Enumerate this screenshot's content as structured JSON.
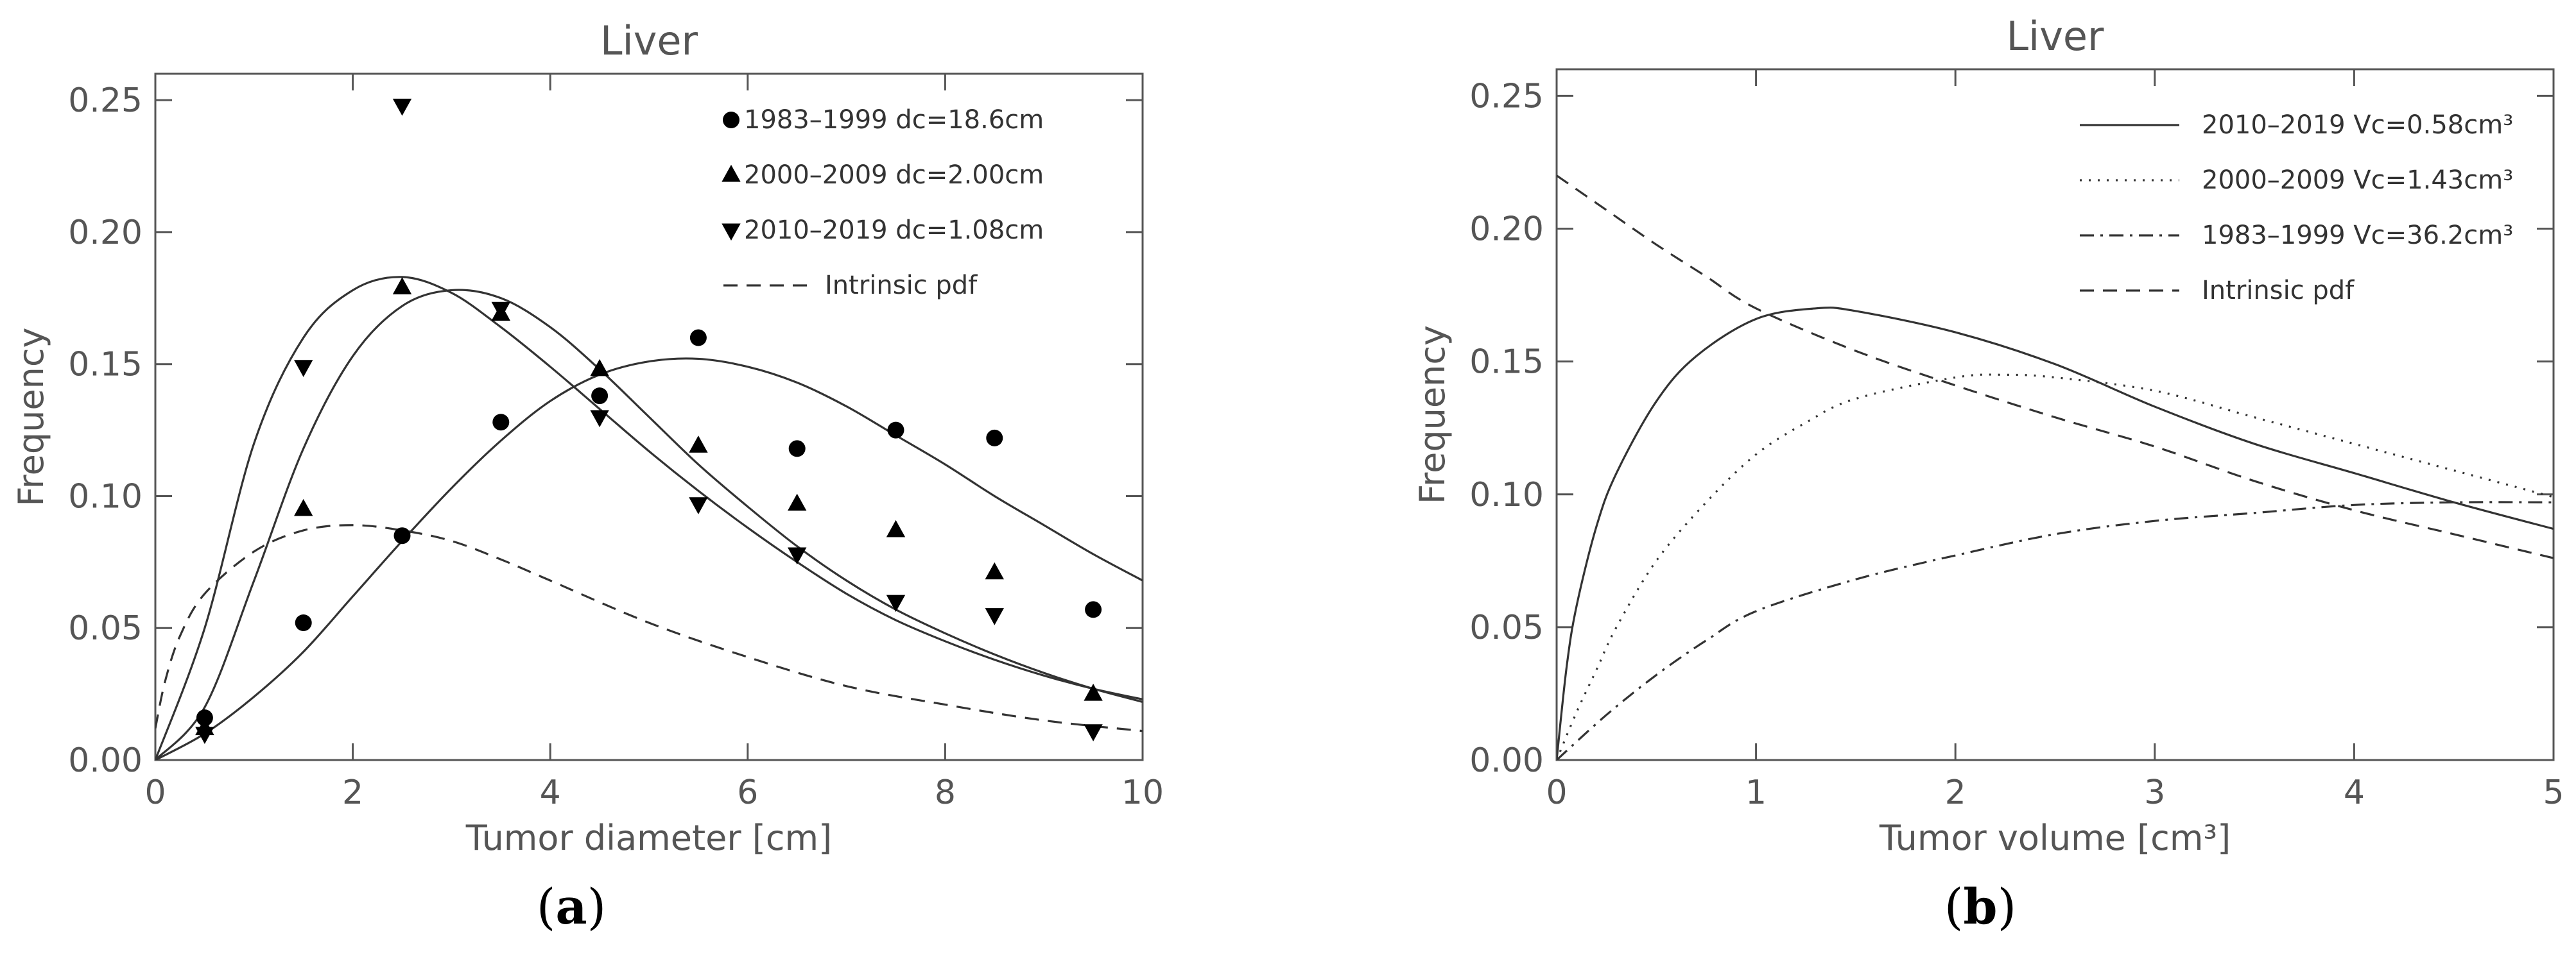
{
  "chart_data": [
    {
      "panel": "a",
      "type": "scatter",
      "title": "Liver",
      "xlabel": "Tumor diameter [cm]",
      "ylabel": "Frequency",
      "xlim": [
        0,
        10
      ],
      "ylim": [
        0,
        0.26
      ],
      "xticks": [
        0,
        2,
        4,
        6,
        8,
        10
      ],
      "xtick_labels": [
        "0",
        "2",
        "4",
        "6",
        "8",
        "10"
      ],
      "yticks": [
        0,
        0.05,
        0.1,
        0.15,
        0.2,
        0.25
      ],
      "ytick_labels": [
        "0.00",
        "0.05",
        "0.10",
        "0.15",
        "0.20",
        "0.25"
      ],
      "legend_position": "top-right",
      "series": [
        {
          "name": "1983–1999 dc=18.6cm",
          "marker": "circle",
          "x": [
            0.5,
            1.5,
            2.5,
            3.5,
            4.5,
            5.5,
            6.5,
            7.5,
            8.5,
            9.5
          ],
          "y": [
            0.016,
            0.052,
            0.085,
            0.128,
            0.138,
            0.16,
            0.118,
            0.125,
            0.122,
            0.057
          ],
          "fit_x": [
            0,
            0.5,
            1,
            1.5,
            2,
            2.5,
            3,
            3.5,
            4,
            4.5,
            5,
            5.5,
            6,
            6.5,
            7,
            7.5,
            8,
            8.5,
            9,
            9.5,
            10
          ],
          "fit_y": [
            0,
            0.01,
            0.024,
            0.041,
            0.062,
            0.083,
            0.103,
            0.121,
            0.136,
            0.146,
            0.151,
            0.152,
            0.149,
            0.143,
            0.134,
            0.123,
            0.112,
            0.1,
            0.089,
            0.078,
            0.068
          ]
        },
        {
          "name": "2000–2009 dc=2.00cm",
          "marker": "triangle-up",
          "x": [
            0.5,
            1.5,
            2.5,
            3.5,
            4.5,
            5.5,
            6.5,
            7.5,
            8.5,
            9.5
          ],
          "y": [
            0.012,
            0.095,
            0.179,
            0.169,
            0.148,
            0.119,
            0.097,
            0.087,
            0.071,
            0.025
          ],
          "fit_x": [
            0,
            0.5,
            1,
            1.5,
            2,
            2.5,
            3,
            3.5,
            4,
            4.5,
            5,
            5.5,
            6,
            6.5,
            7,
            7.5,
            8,
            8.5,
            9,
            9.5,
            10
          ],
          "fit_y": [
            0,
            0.02,
            0.068,
            0.118,
            0.153,
            0.172,
            0.178,
            0.175,
            0.164,
            0.148,
            0.13,
            0.112,
            0.096,
            0.081,
            0.068,
            0.057,
            0.048,
            0.04,
            0.033,
            0.027,
            0.022
          ]
        },
        {
          "name": "2010–2019 dc=1.08cm",
          "marker": "triangle-down",
          "x": [
            0.5,
            1.5,
            2.5,
            3.5,
            4.5,
            5.5,
            6.5,
            7.5,
            8.5,
            9.5
          ],
          "y": [
            0.01,
            0.149,
            0.248,
            0.171,
            0.13,
            0.097,
            0.078,
            0.06,
            0.055,
            0.011
          ],
          "fit_x": [
            0,
            0.5,
            1,
            1.5,
            2,
            2.5,
            3,
            3.5,
            4,
            4.5,
            5,
            5.5,
            6,
            6.5,
            7,
            7.5,
            8,
            8.5,
            9,
            9.5,
            10
          ],
          "fit_y": [
            0,
            0.05,
            0.12,
            0.16,
            0.178,
            0.183,
            0.177,
            0.164,
            0.149,
            0.133,
            0.117,
            0.102,
            0.088,
            0.075,
            0.063,
            0.053,
            0.045,
            0.038,
            0.032,
            0.027,
            0.023
          ]
        },
        {
          "name": "Intrinsic pdf",
          "line_style": "dashed",
          "fit_x": [
            0,
            0.1,
            0.25,
            0.5,
            1,
            1.5,
            2,
            2.5,
            3,
            3.5,
            4,
            5,
            6,
            7,
            8,
            9,
            10
          ],
          "fit_y": [
            0.012,
            0.03,
            0.047,
            0.063,
            0.079,
            0.087,
            0.089,
            0.087,
            0.083,
            0.076,
            0.068,
            0.052,
            0.039,
            0.028,
            0.021,
            0.015,
            0.011
          ]
        }
      ]
    },
    {
      "panel": "b",
      "type": "line",
      "title": "Liver",
      "xlabel": "Tumor volume [cm³]",
      "ylabel": "Frequency",
      "xlim": [
        0,
        5
      ],
      "ylim": [
        0,
        0.26
      ],
      "xticks": [
        0,
        1,
        2,
        3,
        4,
        5
      ],
      "xtick_labels": [
        "0",
        "1",
        "2",
        "3",
        "4",
        "5"
      ],
      "yticks": [
        0,
        0.05,
        0.1,
        0.15,
        0.2,
        0.25
      ],
      "ytick_labels": [
        "0.00",
        "0.05",
        "0.10",
        "0.15",
        "0.20",
        "0.25"
      ],
      "legend_position": "top-right",
      "series": [
        {
          "name": "2010–2019 Vc=0.58cm³",
          "line_style": "solid",
          "x": [
            0,
            0.05,
            0.1,
            0.2,
            0.3,
            0.5,
            0.7,
            1,
            1.3,
            1.5,
            2,
            2.5,
            3,
            3.5,
            4,
            4.5,
            5
          ],
          "y": [
            0,
            0.035,
            0.058,
            0.088,
            0.108,
            0.135,
            0.152,
            0.166,
            0.17,
            0.169,
            0.161,
            0.149,
            0.133,
            0.119,
            0.108,
            0.097,
            0.087
          ]
        },
        {
          "name": "2000–2009 Vc=1.43cm³",
          "line_style": "dotted",
          "x": [
            0,
            0.1,
            0.2,
            0.3,
            0.5,
            0.75,
            1,
            1.25,
            1.5,
            2,
            2.25,
            2.5,
            3,
            3.5,
            4,
            4.5,
            5
          ],
          "y": [
            0,
            0.018,
            0.034,
            0.05,
            0.075,
            0.097,
            0.115,
            0.127,
            0.136,
            0.144,
            0.145,
            0.144,
            0.139,
            0.129,
            0.119,
            0.109,
            0.099
          ]
        },
        {
          "name": "1983–1999 Vc=36.2cm³",
          "line_style": "dash-dot",
          "x": [
            0,
            0.25,
            0.5,
            0.75,
            1,
            1.5,
            2,
            2.5,
            3,
            3.5,
            4,
            4.5,
            5
          ],
          "y": [
            0,
            0.017,
            0.032,
            0.045,
            0.056,
            0.068,
            0.077,
            0.085,
            0.09,
            0.093,
            0.096,
            0.097,
            0.097
          ]
        },
        {
          "name": "Intrinsic pdf",
          "line_style": "dashed",
          "x": [
            0,
            0.25,
            0.5,
            0.75,
            1,
            1.5,
            2,
            2.5,
            3,
            3.5,
            4,
            4.5,
            5
          ],
          "y": [
            0.22,
            0.207,
            0.194,
            0.182,
            0.17,
            0.154,
            0.141,
            0.129,
            0.118,
            0.105,
            0.094,
            0.085,
            0.076
          ]
        }
      ]
    }
  ],
  "captions": {
    "a": {
      "open": "(",
      "letter": "a",
      "close": ")"
    },
    "b": {
      "open": "(",
      "letter": "b",
      "close": ")"
    }
  },
  "colors": {
    "axis": "#555555",
    "series": "#333333"
  }
}
